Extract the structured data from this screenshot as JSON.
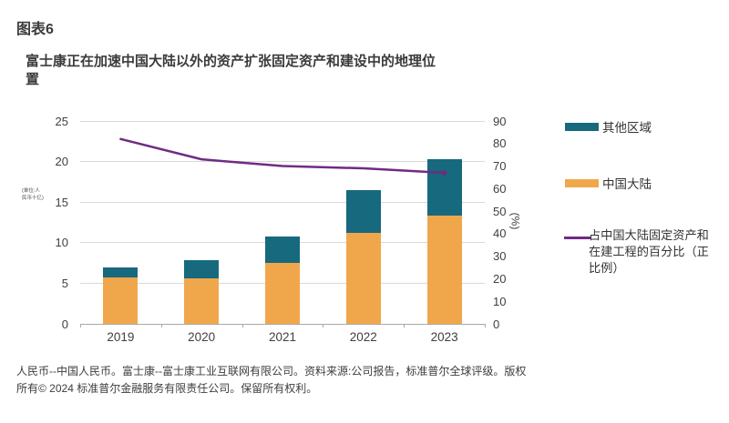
{
  "figure_label": "图表6",
  "subtitle": "富士康正在加速中国大陆以外的资产扩张固定资产和建设中的地理位置",
  "y_axis_unit_label": "(单位:人民币十亿)",
  "right_axis_title": "(%)",
  "footer_lines": [
    "人民币--中国人民币。富士康--富士康工业互联网有限公司。资料来源:公司报告，标准普尔全球评级。版权",
    "所有© 2024 标准普尔金融服务有限责任公司。保留所有权利。"
  ],
  "legend": {
    "other_regions": "其他区域",
    "mainland_china": "中国大陆",
    "line_series": "占中国大陆固定资产和在建工程的百分比（正比例）"
  },
  "colors": {
    "teal": "#17697e",
    "orange": "#f0a74c",
    "purple": "#702b82",
    "gridline": "#d9d9d9",
    "axis": "#a8a8a8"
  },
  "chart_data": {
    "type": "bar",
    "categories": [
      "2019",
      "2020",
      "2021",
      "2022",
      "2023"
    ],
    "series": [
      {
        "name": "中国大陆",
        "type": "bar",
        "stack": "total",
        "color": "#f0a74c",
        "axis": "left",
        "values": [
          5.7,
          5.6,
          7.5,
          11.2,
          13.3
        ]
      },
      {
        "name": "其他区域",
        "type": "bar",
        "stack": "total",
        "color": "#17697e",
        "axis": "left",
        "values": [
          1.3,
          2.2,
          3.3,
          5.3,
          7.0
        ]
      },
      {
        "name": "占中国大陆固定资产和在建工程的百分比（正比例）",
        "type": "line",
        "color": "#702b82",
        "axis": "right",
        "values": [
          82,
          73,
          70,
          69,
          67
        ]
      }
    ],
    "left_axis": {
      "min": 0,
      "max": 25,
      "step": 5
    },
    "right_axis": {
      "min": 0,
      "max": 90,
      "step": 10
    },
    "grid": true,
    "legend_position": "right"
  }
}
